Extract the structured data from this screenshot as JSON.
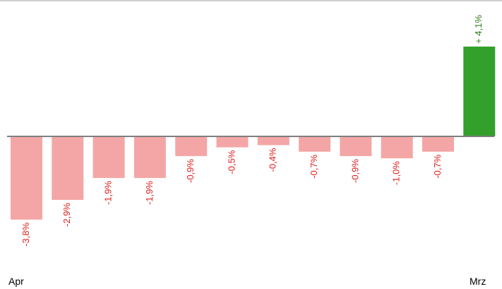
{
  "chart_data": {
    "type": "bar",
    "categories": [
      "",
      "",
      "",
      "",
      "",
      "",
      "",
      "",
      "",
      "",
      "",
      ""
    ],
    "values": [
      -3.8,
      -2.9,
      -1.9,
      -1.9,
      -0.9,
      -0.5,
      -0.4,
      -0.7,
      -0.9,
      -1.0,
      -0.7,
      4.1
    ],
    "data_labels": [
      "-3,8%",
      "-2,9%",
      "-1,9%",
      "-1,9%",
      "-0,9%",
      "-0,5%",
      "-0,4%",
      "-0,7%",
      "-0,9%",
      "-1,0%",
      "-0,7%",
      "+ 4,1%"
    ],
    "x_tick_labels": {
      "first": "Apr",
      "last": "Mrz"
    },
    "title": "",
    "xlabel": "",
    "ylabel": "",
    "grid": false,
    "legend": "none",
    "colors": {
      "negative_bar": "#f4a6a6",
      "positive_bar": "#33a02c",
      "negative_label": "#e02020",
      "positive_label": "#2e7d1f",
      "baseline": "#7f7f7f",
      "top_border": "#bfbfbf"
    }
  }
}
